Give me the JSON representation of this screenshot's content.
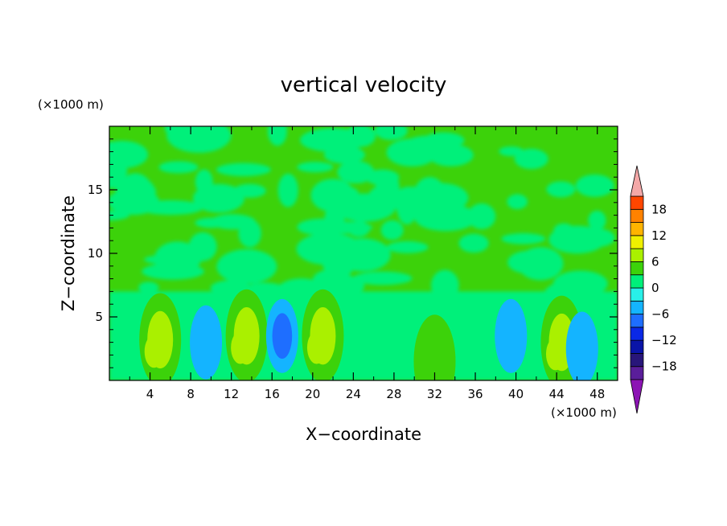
{
  "chart_data": {
    "type": "heatmap",
    "title": "vertical velocity",
    "xlabel": "X−coordinate",
    "ylabel": "Z−coordinate",
    "x_unit": "(×1000 m)",
    "y_unit": "(×1000 m)",
    "xlim": [
      0,
      50
    ],
    "ylim": [
      0,
      20
    ],
    "x_ticks": [
      "4",
      "8",
      "12",
      "16",
      "20",
      "24",
      "28",
      "32",
      "36",
      "40",
      "44",
      "48"
    ],
    "y_ticks": [
      "5",
      "10",
      "15"
    ],
    "colorbar": {
      "levels": [
        -21,
        -18,
        -15,
        -12,
        -9,
        -6,
        -3,
        0,
        3,
        6,
        9,
        12,
        15,
        18,
        21
      ],
      "tick_labels": [
        "18",
        "12",
        "6",
        "0",
        "−6",
        "−12",
        "−18"
      ],
      "tick_values": [
        18,
        12,
        6,
        0,
        -6,
        -12,
        -18
      ],
      "colors": [
        "#5a1e9a",
        "#28167a",
        "#0a14a8",
        "#0a28e6",
        "#1e6eff",
        "#14b4ff",
        "#28f0e8",
        "#00f07a",
        "#3cd20a",
        "#aaf000",
        "#f0f000",
        "#ffb400",
        "#ff8200",
        "#ff4600",
        "#ff0a0a"
      ],
      "over_color": "#f4a8a8",
      "under_color": "#8c14b4"
    },
    "cells": [
      {
        "x": 5,
        "z": 3.2,
        "value": 7
      },
      {
        "x": 13.5,
        "z": 3.5,
        "value": 8
      },
      {
        "x": 21,
        "z": 3.5,
        "value": 7
      },
      {
        "x": 32,
        "z": 1.5,
        "value": 5
      },
      {
        "x": 44.5,
        "z": 3.0,
        "value": 8
      },
      {
        "x": 17,
        "z": 3.5,
        "value": -8
      },
      {
        "x": 9.5,
        "z": 3.0,
        "value": -5
      },
      {
        "x": 39.5,
        "z": 3.5,
        "value": -4
      },
      {
        "x": 46.5,
        "z": 2.5,
        "value": -4
      }
    ]
  }
}
